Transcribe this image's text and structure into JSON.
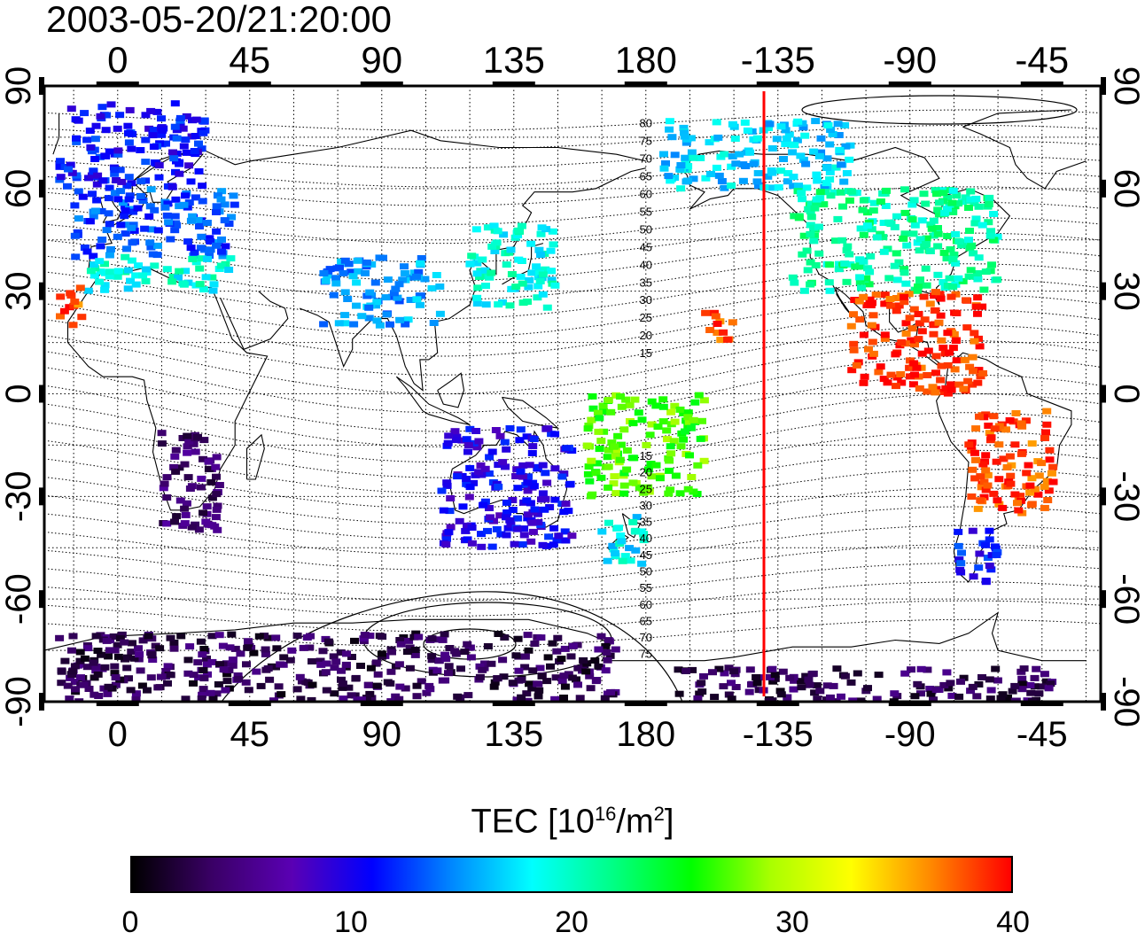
{
  "title": "2003-05-20/21:20:00",
  "colorbar": {
    "label_main": "TEC  [10",
    "label_exp1": "16",
    "label_mid": "/m",
    "label_exp2": "2",
    "label_end": "]",
    "ticks": [
      "0",
      "10",
      "20",
      "30",
      "40"
    ],
    "min": 0,
    "max": 40,
    "colors": [
      "#000000",
      "#3a0066",
      "#5a00b4",
      "#0000ff",
      "#0088ff",
      "#00ffff",
      "#00ff88",
      "#00ff00",
      "#aaff00",
      "#ffff00",
      "#ff8800",
      "#ff0000"
    ]
  },
  "axes": {
    "top_lon_labels": [
      "0",
      "45",
      "90",
      "135",
      "180",
      "-135",
      "-90",
      "-45"
    ],
    "bottom_lon_labels": [
      "0",
      "45",
      "90",
      "135",
      "180",
      "-135",
      "-90",
      "-45"
    ],
    "lat_labels": [
      "90",
      "60",
      "30",
      "0",
      "-30",
      "-60",
      "-90"
    ],
    "lon_ticks": [
      0,
      45,
      90,
      135,
      180,
      225,
      270,
      315
    ],
    "lat_ticks": [
      90,
      60,
      30,
      0,
      -30,
      -60,
      -90
    ]
  },
  "chart_data": {
    "type": "heatmap",
    "title": "2003-05-20/21:20:00",
    "xlabel": "",
    "ylabel": "",
    "xlim": [
      -25,
      335
    ],
    "ylim": [
      -90,
      90
    ],
    "colorbar_label": "TEC [10^16/m^2]",
    "colorbar_range": [
      0,
      40
    ],
    "marker_longitude": -140,
    "grid": true,
    "contour_labels": [
      "80",
      "75",
      "70",
      "65",
      "60",
      "55",
      "50",
      "45",
      "40",
      "35",
      "30",
      "25",
      "20",
      "15",
      "15",
      "20",
      "25",
      "30",
      "35",
      "40",
      "45",
      "50",
      "55",
      "60",
      "65",
      "70",
      "75"
    ],
    "regions": [
      {
        "lon": [
          -20,
          30
        ],
        "lat": [
          60,
          85
        ],
        "tec": 11
      },
      {
        "lon": [
          -15,
          40
        ],
        "lat": [
          40,
          60
        ],
        "tec": 13
      },
      {
        "lon": [
          -10,
          40
        ],
        "lat": [
          30,
          40
        ],
        "tec": 19
      },
      {
        "lon": [
          -20,
          -12
        ],
        "lat": [
          20,
          33
        ],
        "tec": 38
      },
      {
        "lon": [
          120,
          150
        ],
        "lat": [
          25,
          50
        ],
        "tec": 19
      },
      {
        "lon": [
          70,
          110
        ],
        "lat": [
          20,
          40
        ],
        "tec": 15
      },
      {
        "lon": [
          -175,
          -110
        ],
        "lat": [
          60,
          80
        ],
        "tec": 17
      },
      {
        "lon": [
          -130,
          -60
        ],
        "lat": [
          30,
          60
        ],
        "tec": 21
      },
      {
        "lon": [
          -110,
          -65
        ],
        "lat": [
          0,
          30
        ],
        "tec": 39
      },
      {
        "lon": [
          -70,
          -40
        ],
        "lat": [
          -35,
          -5
        ],
        "tec": 38
      },
      {
        "lon": [
          -75,
          -60
        ],
        "lat": [
          -55,
          -40
        ],
        "tec": 11
      },
      {
        "lon": [
          110,
          155
        ],
        "lat": [
          -45,
          -10
        ],
        "tec": 10
      },
      {
        "lon": [
          165,
          180
        ],
        "lat": [
          -50,
          -35
        ],
        "tec": 18
      },
      {
        "lon": [
          160,
          -160
        ],
        "lat": [
          -30,
          0
        ],
        "tec": 27
      },
      {
        "lon": [
          -160,
          -150
        ],
        "lat": [
          15,
          25
        ],
        "tec": 38
      },
      {
        "lon": [
          15,
          35
        ],
        "lat": [
          -40,
          -10
        ],
        "tec": 4
      },
      {
        "lon": [
          -20,
          170
        ],
        "lat": [
          -90,
          -70
        ],
        "tec": 3
      },
      {
        "lon": [
          -170,
          -40
        ],
        "lat": [
          -90,
          -80
        ],
        "tec": 3
      }
    ]
  }
}
